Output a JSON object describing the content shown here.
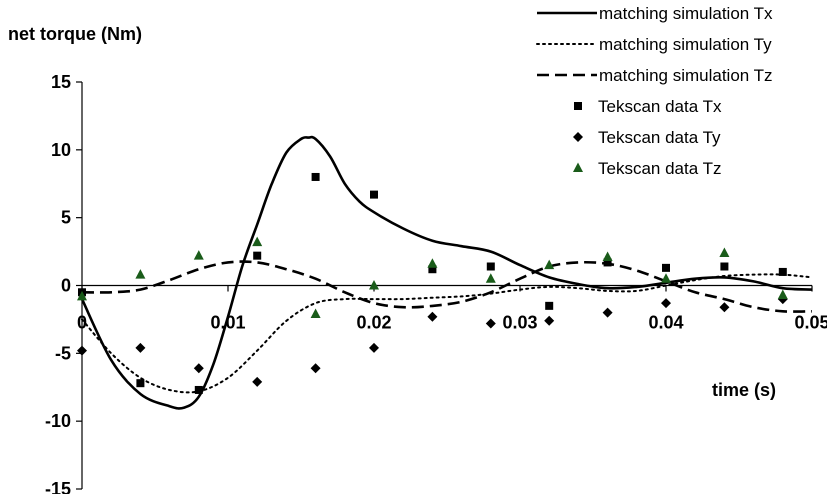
{
  "chart_data": {
    "type": "scatter",
    "ylabel": "net torque (Nm)",
    "xlabel": "time (s)",
    "xlim": [
      0,
      0.05
    ],
    "ylim": [
      -15,
      15
    ],
    "x_ticks": [
      "0",
      "0.01",
      "0.02",
      "0.03",
      "0.04",
      "0.05"
    ],
    "y_ticks": [
      "15",
      "10",
      "5",
      "0",
      "-5",
      "-10",
      "-15"
    ],
    "grid": false,
    "legend_position": "top-right",
    "series": [
      {
        "name": "matching simulation Tx",
        "kind": "line",
        "dash": "solid",
        "color": "#000000",
        "x": [
          0,
          0.002,
          0.004,
          0.006,
          0.007,
          0.008,
          0.009,
          0.01,
          0.011,
          0.012,
          0.013,
          0.014,
          0.015,
          0.0155,
          0.016,
          0.017,
          0.018,
          0.019,
          0.02,
          0.022,
          0.024,
          0.026,
          0.028,
          0.03,
          0.032,
          0.034,
          0.036,
          0.038,
          0.04,
          0.042,
          0.044,
          0.046,
          0.048,
          0.05
        ],
        "y": [
          -1,
          -5.5,
          -8,
          -8.9,
          -9.0,
          -8.2,
          -5.8,
          -2.3,
          1.5,
          4.5,
          7.5,
          9.8,
          10.8,
          10.9,
          10.8,
          9.5,
          7.5,
          6.2,
          5.4,
          4.2,
          3.3,
          2.9,
          2.5,
          1.5,
          0.6,
          0.1,
          -0.2,
          -0.1,
          0.2,
          0.5,
          0.6,
          0.3,
          -0.2,
          -0.3
        ]
      },
      {
        "name": "matching simulation Ty",
        "kind": "line",
        "dash": "dotted",
        "color": "#000000",
        "x": [
          0,
          0.002,
          0.004,
          0.006,
          0.008,
          0.01,
          0.012,
          0.014,
          0.016,
          0.018,
          0.02,
          0.022,
          0.024,
          0.026,
          0.028,
          0.03,
          0.032,
          0.034,
          0.036,
          0.038,
          0.04,
          0.042,
          0.044,
          0.046,
          0.048,
          0.05
        ],
        "y": [
          -2.5,
          -5,
          -6.8,
          -7.7,
          -7.8,
          -6.8,
          -4.8,
          -2.6,
          -1.3,
          -1.0,
          -1.0,
          -1.0,
          -0.9,
          -0.8,
          -0.6,
          -0.3,
          -0.1,
          -0.2,
          -0.4,
          -0.4,
          0.0,
          0.4,
          0.7,
          0.8,
          0.8,
          0.6
        ]
      },
      {
        "name": "matching simulation Tz",
        "kind": "line",
        "dash": "dashed",
        "color": "#000000",
        "x": [
          0,
          0.002,
          0.004,
          0.006,
          0.008,
          0.01,
          0.012,
          0.014,
          0.016,
          0.018,
          0.02,
          0.022,
          0.024,
          0.026,
          0.028,
          0.03,
          0.032,
          0.034,
          0.036,
          0.038,
          0.04,
          0.042,
          0.044,
          0.046,
          0.048,
          0.05
        ],
        "y": [
          -0.5,
          -0.5,
          -0.3,
          0.4,
          1.2,
          1.7,
          1.7,
          1.2,
          0.5,
          -0.5,
          -1.3,
          -1.6,
          -1.5,
          -1.2,
          -0.5,
          0.5,
          1.4,
          1.7,
          1.6,
          1.1,
          0.3,
          -0.5,
          -1.0,
          -1.6,
          -1.9,
          -1.9
        ]
      },
      {
        "name": "Tekscan data Tx",
        "kind": "points",
        "marker": "square",
        "color": "#000000",
        "x": [
          0,
          0.004,
          0.008,
          0.012,
          0.016,
          0.02,
          0.024,
          0.028,
          0.032,
          0.036,
          0.04,
          0.044,
          0.048
        ],
        "y": [
          -0.5,
          -7.2,
          -7.7,
          2.2,
          8.0,
          6.7,
          1.2,
          1.4,
          -1.5,
          1.7,
          1.3,
          1.4,
          1.0
        ]
      },
      {
        "name": "Tekscan data Ty",
        "kind": "points",
        "marker": "diamond",
        "color": "#000000",
        "x": [
          0,
          0.004,
          0.008,
          0.012,
          0.016,
          0.02,
          0.024,
          0.028,
          0.032,
          0.036,
          0.04,
          0.044,
          0.048
        ],
        "y": [
          -4.8,
          -4.6,
          -6.1,
          -7.1,
          -6.1,
          -4.6,
          -2.3,
          -2.8,
          -2.6,
          -2.0,
          -1.3,
          -1.6,
          -1.0
        ]
      },
      {
        "name": "Tekscan data Tz",
        "kind": "points",
        "marker": "triangle",
        "color": "#1a5c1a",
        "x": [
          0,
          0.004,
          0.008,
          0.012,
          0.016,
          0.02,
          0.024,
          0.028,
          0.032,
          0.036,
          0.04,
          0.044,
          0.048
        ],
        "y": [
          -0.8,
          0.8,
          2.2,
          3.2,
          -2.1,
          0.0,
          1.6,
          0.5,
          1.5,
          2.1,
          0.5,
          2.4,
          -0.7
        ]
      }
    ]
  }
}
